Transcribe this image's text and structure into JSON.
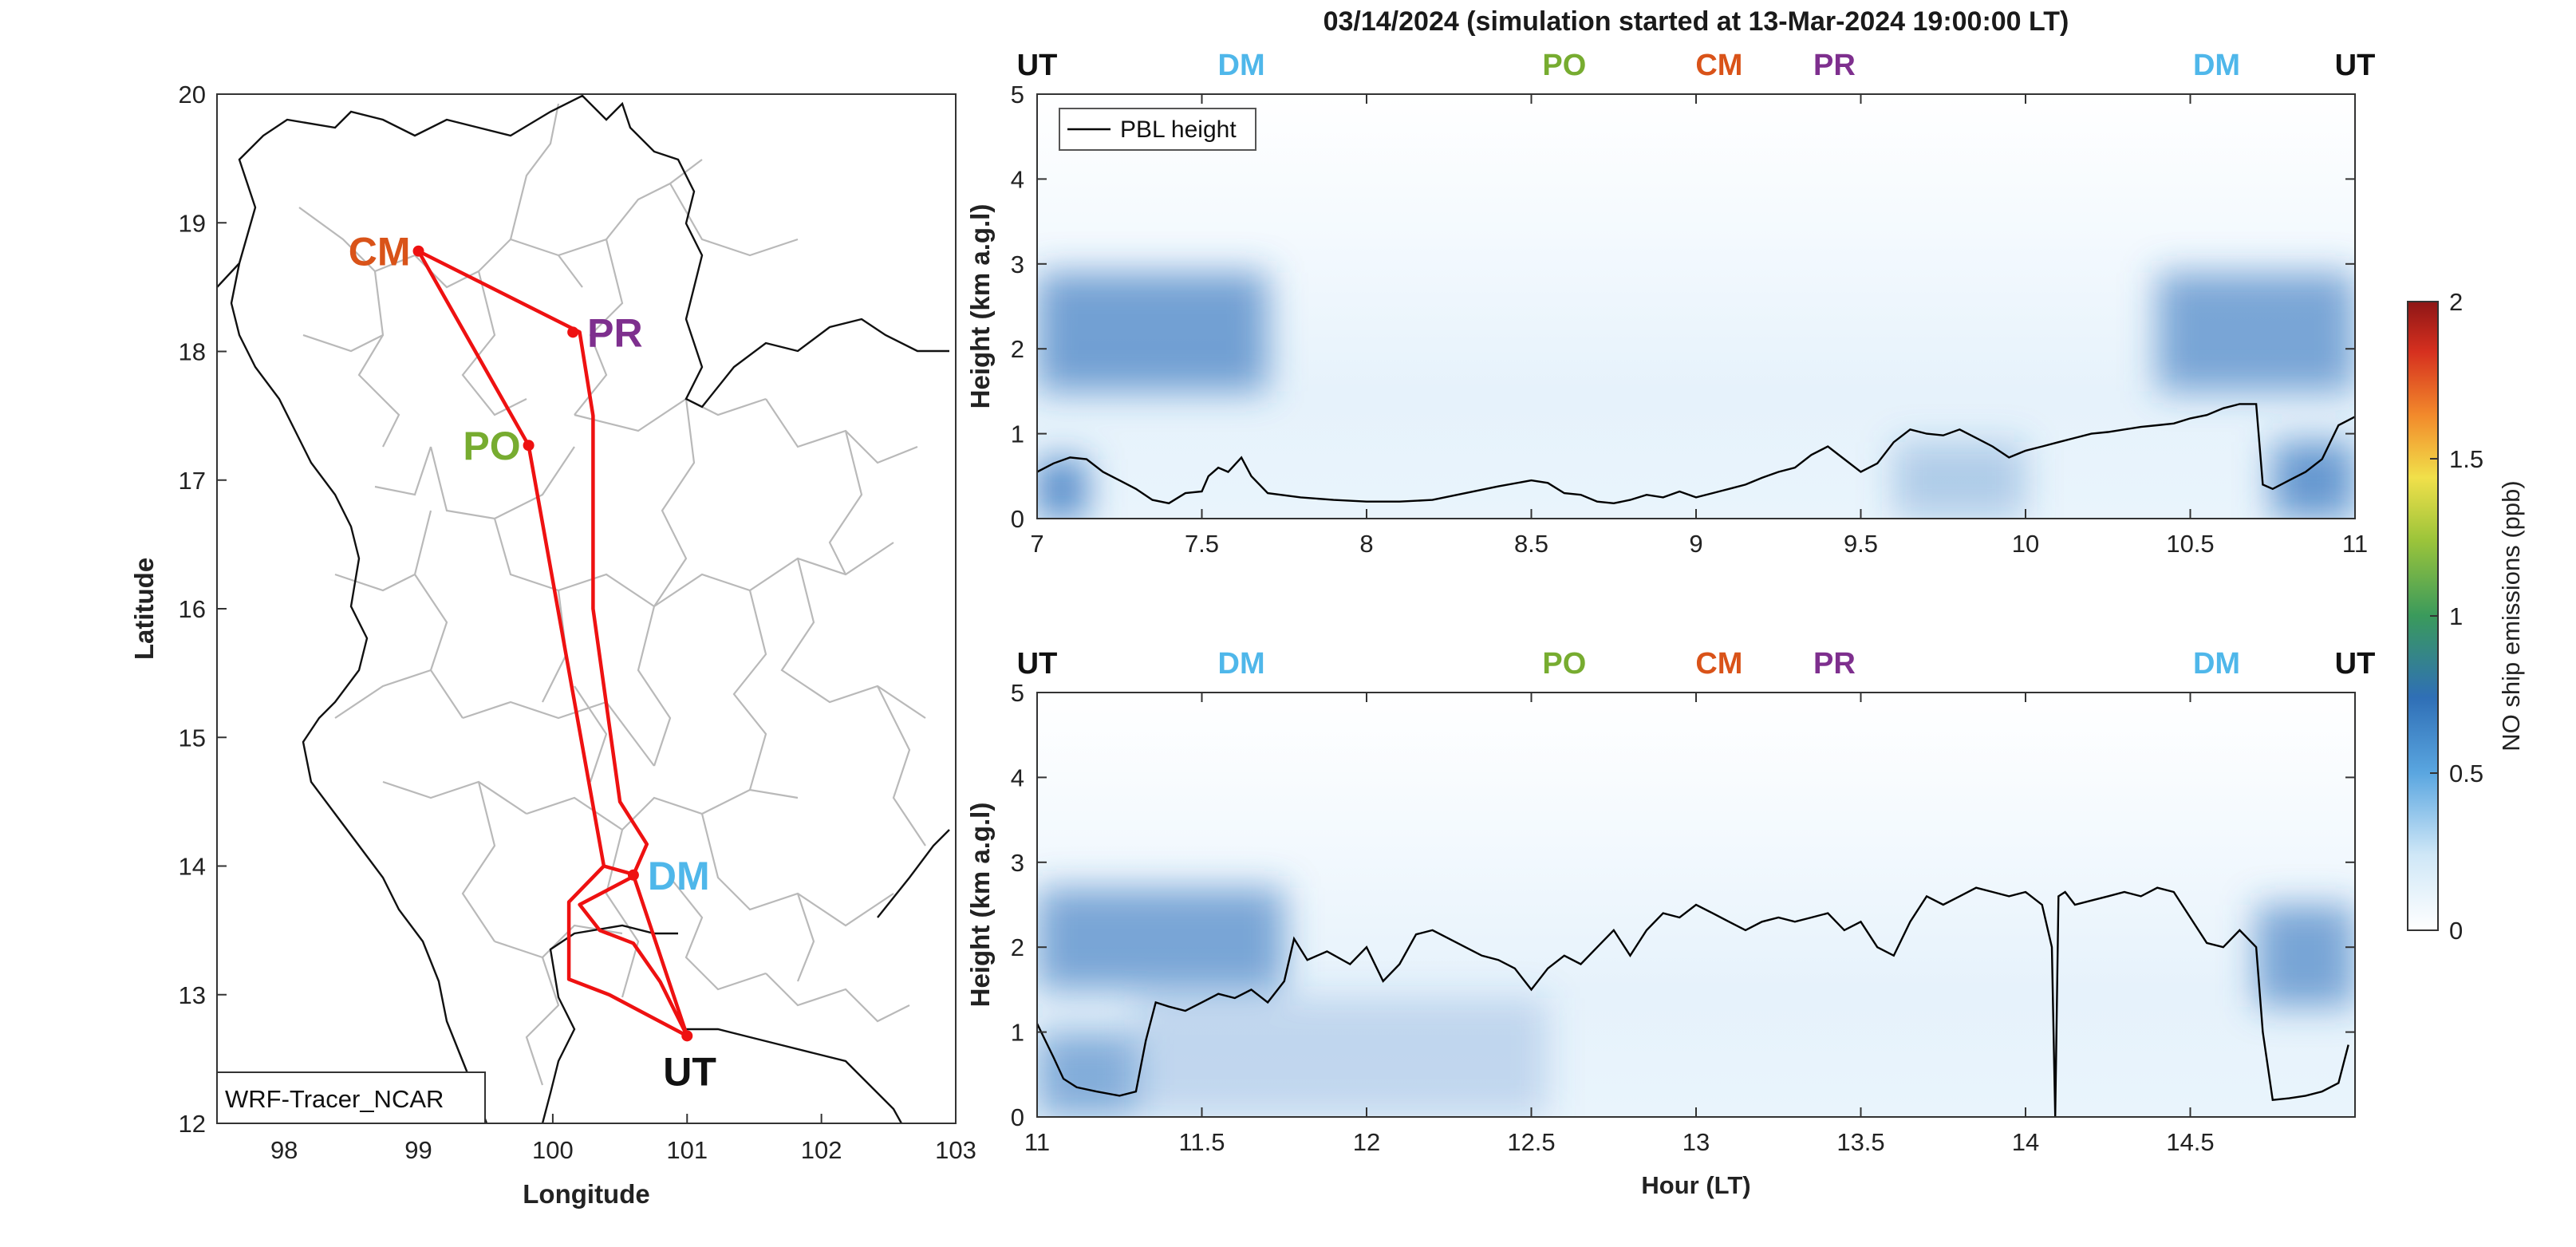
{
  "title": "03/14/2024 (simulation started at 13-Mar-2024 19:00:00 LT)",
  "colors": {
    "route": "#ee1111",
    "UT": "#111111",
    "DM": "#4fb7ea",
    "PO": "#77ac30",
    "CM": "#d95319",
    "PR": "#7e2f8e",
    "pbl": "#000000"
  },
  "chart_data": [
    {
      "type": "map",
      "xlabel": "Longitude",
      "ylabel": "Latitude",
      "xlim": [
        97.5,
        103
      ],
      "ylim": [
        12,
        20
      ],
      "xticks": [
        "98",
        "99",
        "100",
        "101",
        "102",
        "103"
      ],
      "yticks": [
        "12",
        "13",
        "14",
        "15",
        "16",
        "17",
        "18",
        "19",
        "20"
      ],
      "legend_label": "WRF-Tracer_NCAR",
      "stations": [
        {
          "code": "CM",
          "lon": 99.0,
          "lat": 18.78
        },
        {
          "code": "PR",
          "lon": 100.15,
          "lat": 18.15
        },
        {
          "code": "PO",
          "lon": 99.82,
          "lat": 17.27
        },
        {
          "code": "DM",
          "lon": 100.6,
          "lat": 13.93
        },
        {
          "code": "UT",
          "lon": 101.0,
          "lat": 12.68
        }
      ],
      "route": [
        [
          101.0,
          12.68
        ],
        [
          100.6,
          13.93
        ],
        [
          100.7,
          14.17
        ],
        [
          100.5,
          14.5
        ],
        [
          100.3,
          16.0
        ],
        [
          100.3,
          17.5
        ],
        [
          100.2,
          18.15
        ],
        [
          99.0,
          18.78
        ],
        [
          99.82,
          17.27
        ],
        [
          100.38,
          14.0
        ],
        [
          100.62,
          13.93
        ],
        [
          100.2,
          13.7
        ],
        [
          100.35,
          13.5
        ],
        [
          100.6,
          13.4
        ],
        [
          100.8,
          13.1
        ],
        [
          101.0,
          12.68
        ],
        [
          100.42,
          13.0
        ],
        [
          100.12,
          13.12
        ],
        [
          100.12,
          13.72
        ],
        [
          100.38,
          14.0
        ]
      ]
    },
    {
      "type": "heatmap",
      "panel": "top",
      "xlabel": "",
      "ylabel": "Height (km a.g.l)",
      "xlim": [
        7,
        11
      ],
      "ylim": [
        0,
        5
      ],
      "xticks": [
        "7",
        "7.5",
        "8",
        "8.5",
        "9",
        "9.5",
        "10",
        "10.5",
        "11"
      ],
      "yticks": [
        "0",
        "1",
        "2",
        "3",
        "4",
        "5"
      ],
      "legend": "PBL height",
      "top_labels": [
        {
          "text": "UT",
          "x": 7.0
        },
        {
          "text": "DM",
          "x": 7.62
        },
        {
          "text": "PO",
          "x": 8.6
        },
        {
          "text": "CM",
          "x": 9.07
        },
        {
          "text": "PR",
          "x": 9.42
        },
        {
          "text": "DM",
          "x": 10.58
        },
        {
          "text": "UT",
          "x": 10.95
        }
      ],
      "pbl_x": [
        7.0,
        7.05,
        7.1,
        7.15,
        7.2,
        7.25,
        7.3,
        7.35,
        7.4,
        7.45,
        7.5,
        7.52,
        7.55,
        7.58,
        7.62,
        7.65,
        7.7,
        7.8,
        7.9,
        8.0,
        8.1,
        8.2,
        8.3,
        8.4,
        8.5,
        8.55,
        8.6,
        8.65,
        8.7,
        8.75,
        8.8,
        8.85,
        8.9,
        8.95,
        9.0,
        9.05,
        9.1,
        9.15,
        9.2,
        9.25,
        9.3,
        9.35,
        9.4,
        9.45,
        9.5,
        9.55,
        9.6,
        9.65,
        9.7,
        9.75,
        9.8,
        9.85,
        9.9,
        9.95,
        10.0,
        10.05,
        10.1,
        10.15,
        10.2,
        10.25,
        10.3,
        10.35,
        10.4,
        10.45,
        10.5,
        10.55,
        10.6,
        10.65,
        10.7,
        10.72,
        10.75,
        10.8,
        10.85,
        10.9,
        10.95,
        11.0
      ],
      "pbl_y": [
        0.55,
        0.65,
        0.72,
        0.7,
        0.55,
        0.45,
        0.35,
        0.22,
        0.18,
        0.3,
        0.32,
        0.5,
        0.6,
        0.55,
        0.72,
        0.5,
        0.3,
        0.25,
        0.22,
        0.2,
        0.2,
        0.22,
        0.3,
        0.38,
        0.45,
        0.42,
        0.3,
        0.28,
        0.2,
        0.18,
        0.22,
        0.28,
        0.25,
        0.32,
        0.25,
        0.3,
        0.35,
        0.4,
        0.48,
        0.55,
        0.6,
        0.75,
        0.85,
        0.7,
        0.55,
        0.65,
        0.9,
        1.05,
        1.0,
        0.98,
        1.05,
        0.95,
        0.85,
        0.72,
        0.8,
        0.85,
        0.9,
        0.95,
        1.0,
        1.02,
        1.05,
        1.08,
        1.1,
        1.12,
        1.18,
        1.22,
        1.3,
        1.35,
        1.35,
        0.4,
        0.35,
        0.45,
        0.55,
        0.7,
        1.1,
        1.2
      ],
      "emission_bands": [
        {
          "y0": 1.5,
          "y1": 2.9,
          "x0": 7.0,
          "x1": 7.7,
          "intensity": 0.65
        },
        {
          "y0": 1.5,
          "y1": 2.9,
          "x0": 10.4,
          "x1": 11.0,
          "intensity": 0.6
        },
        {
          "y0": 0.0,
          "y1": 0.9,
          "x0": 10.75,
          "x1": 11.0,
          "intensity": 0.7
        },
        {
          "y0": 0.0,
          "y1": 0.7,
          "x0": 7.0,
          "x1": 7.15,
          "intensity": 0.8
        },
        {
          "y0": 0.0,
          "y1": 0.9,
          "x0": 9.6,
          "x1": 10.0,
          "intensity": 0.3
        }
      ]
    },
    {
      "type": "heatmap",
      "panel": "bottom",
      "xlabel": "Hour (LT)",
      "ylabel": "Height (km a.g.l)",
      "xlim": [
        11,
        15
      ],
      "ylim": [
        0,
        5
      ],
      "xticks": [
        "11",
        "11.5",
        "12",
        "12.5",
        "13",
        "13.5",
        "14",
        "14.5"
      ],
      "yticks": [
        "0",
        "1",
        "2",
        "3",
        "4",
        "5"
      ],
      "top_labels": [
        {
          "text": "UT",
          "x": 11.0
        },
        {
          "text": "DM",
          "x": 11.62
        },
        {
          "text": "PO",
          "x": 12.6
        },
        {
          "text": "CM",
          "x": 13.07
        },
        {
          "text": "PR",
          "x": 13.42
        },
        {
          "text": "DM",
          "x": 14.58
        },
        {
          "text": "UT",
          "x": 14.95
        }
      ],
      "pbl_x": [
        11.0,
        11.05,
        11.08,
        11.12,
        11.18,
        11.25,
        11.3,
        11.33,
        11.36,
        11.4,
        11.45,
        11.5,
        11.55,
        11.6,
        11.65,
        11.7,
        11.75,
        11.78,
        11.82,
        11.88,
        11.95,
        12.0,
        12.05,
        12.1,
        12.15,
        12.2,
        12.25,
        12.3,
        12.35,
        12.4,
        12.45,
        12.5,
        12.55,
        12.6,
        12.65,
        12.7,
        12.75,
        12.8,
        12.85,
        12.9,
        12.95,
        13.0,
        13.05,
        13.1,
        13.15,
        13.2,
        13.25,
        13.3,
        13.35,
        13.4,
        13.45,
        13.5,
        13.55,
        13.6,
        13.65,
        13.7,
        13.75,
        13.8,
        13.85,
        13.9,
        13.95,
        14.0,
        14.05,
        14.08,
        14.09,
        14.1,
        14.12,
        14.15,
        14.2,
        14.25,
        14.3,
        14.35,
        14.4,
        14.45,
        14.5,
        14.55,
        14.6,
        14.65,
        14.7,
        14.72,
        14.75,
        14.8,
        14.85,
        14.9,
        14.95,
        14.98
      ],
      "pbl_y": [
        1.1,
        0.7,
        0.45,
        0.35,
        0.3,
        0.25,
        0.3,
        0.9,
        1.35,
        1.3,
        1.25,
        1.35,
        1.45,
        1.4,
        1.5,
        1.35,
        1.6,
        2.1,
        1.85,
        1.95,
        1.8,
        2.0,
        1.6,
        1.8,
        2.15,
        2.2,
        2.1,
        2.0,
        1.9,
        1.85,
        1.75,
        1.5,
        1.75,
        1.9,
        1.8,
        2.0,
        2.2,
        1.9,
        2.2,
        2.4,
        2.35,
        2.5,
        2.4,
        2.3,
        2.2,
        2.3,
        2.35,
        2.3,
        2.35,
        2.4,
        2.2,
        2.3,
        2.0,
        1.9,
        2.3,
        2.6,
        2.5,
        2.6,
        2.7,
        2.65,
        2.6,
        2.65,
        2.5,
        2.0,
        0.0,
        2.6,
        2.65,
        2.5,
        2.55,
        2.6,
        2.65,
        2.6,
        2.7,
        2.65,
        2.35,
        2.05,
        2.0,
        2.2,
        2.0,
        1.0,
        0.2,
        0.22,
        0.25,
        0.3,
        0.4,
        0.85
      ],
      "emission_bands": [
        {
          "y0": 1.5,
          "y1": 2.7,
          "x0": 11.0,
          "x1": 11.75,
          "intensity": 0.6
        },
        {
          "y0": 1.3,
          "y1": 2.5,
          "x0": 14.7,
          "x1": 15.0,
          "intensity": 0.6
        },
        {
          "y0": 0.0,
          "y1": 1.0,
          "x0": 11.0,
          "x1": 11.3,
          "intensity": 0.55
        },
        {
          "y0": 0.0,
          "y1": 1.4,
          "x0": 11.3,
          "x1": 12.55,
          "intensity": 0.22
        }
      ]
    },
    {
      "type": "colorbar",
      "label": "NO ship emissions (ppb)",
      "ticks": [
        "0",
        "0.5",
        "1",
        "1.5",
        "2"
      ],
      "range": [
        0,
        2
      ]
    }
  ]
}
